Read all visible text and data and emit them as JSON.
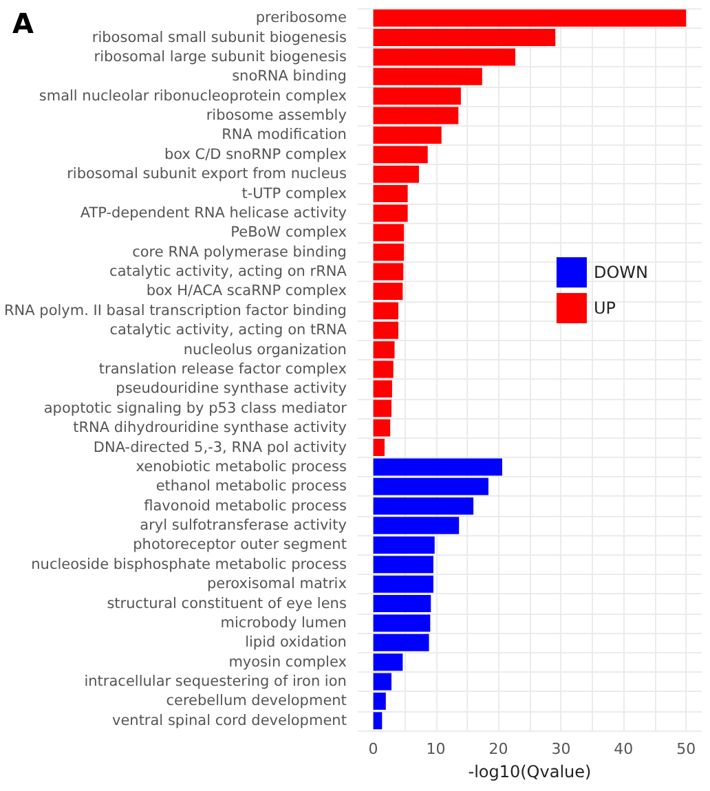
{
  "chart_data": {
    "type": "bar",
    "orientation": "horizontal",
    "title": "A",
    "xlabel": "-log10(Qvalue)",
    "categories": [
      "preribosome",
      "ribosomal small subunit biogenesis",
      "ribosomal large subunit biogenesis",
      "snoRNA binding",
      "small nucleolar ribonucleoprotein complex",
      "ribosome assembly",
      "RNA modification",
      "box C/D snoRNP complex",
      "ribosomal subunit export from nucleus",
      "t-UTP complex",
      "ATP-dependent RNA helicase activity",
      "PeBoW complex",
      "core RNA polymerase binding",
      "catalytic activity, acting on rRNA",
      "box H/ACA scaRNP complex",
      "RNA polym. II basal transcription factor binding",
      "catalytic activity, acting on tRNA",
      "nucleolus organization",
      "translation release factor complex",
      "pseudouridine synthase activity",
      "apoptotic signaling by p53 class mediator",
      "tRNA dihydrouridine synthase activity",
      "DNA-directed 5,-3, RNA pol activity",
      "xenobiotic metabolic process",
      "ethanol metabolic process",
      "flavonoid metabolic process",
      "aryl sulfotransferase activity",
      "photoreceptor outer segment",
      "nucleoside bisphosphate metabolic process",
      "peroxisomal matrix",
      "structural constituent of eye lens",
      "microbody lumen",
      "lipid oxidation",
      "myosin complex",
      "intracellular sequestering of iron ion",
      "cerebellum development",
      "ventral spinal cord development"
    ],
    "series": [
      {
        "name": "DOWN",
        "color": "#0000ff",
        "values": [
          null,
          null,
          null,
          null,
          null,
          null,
          null,
          null,
          null,
          null,
          null,
          null,
          null,
          null,
          null,
          null,
          null,
          null,
          null,
          null,
          null,
          null,
          null,
          20.6,
          18.4,
          16.0,
          13.7,
          9.8,
          9.6,
          9.6,
          9.2,
          9.1,
          8.9,
          4.7,
          2.9,
          2.0,
          1.4
        ]
      },
      {
        "name": "UP",
        "color": "#ff0000",
        "values": [
          50,
          29.1,
          22.7,
          17.4,
          14.0,
          13.6,
          10.9,
          8.7,
          7.3,
          5.5,
          5.5,
          4.9,
          4.9,
          4.8,
          4.7,
          4.0,
          4.0,
          3.4,
          3.2,
          3.0,
          2.9,
          2.7,
          1.8,
          null,
          null,
          null,
          null,
          null,
          null,
          null,
          null,
          null,
          null,
          null,
          null,
          null,
          null
        ]
      }
    ],
    "xlim": [
      -2.5,
      52.5
    ],
    "xticks": [
      0,
      {
        "value": 5,
        "label": null
      },
      10,
      {
        "value": 15,
        "label": null
      },
      20,
      {
        "value": 25,
        "label": null
      },
      30,
      {
        "value": 35,
        "label": null
      },
      40,
      {
        "value": 45,
        "label": null
      },
      50
    ],
    "grid": true,
    "legend": "right"
  }
}
